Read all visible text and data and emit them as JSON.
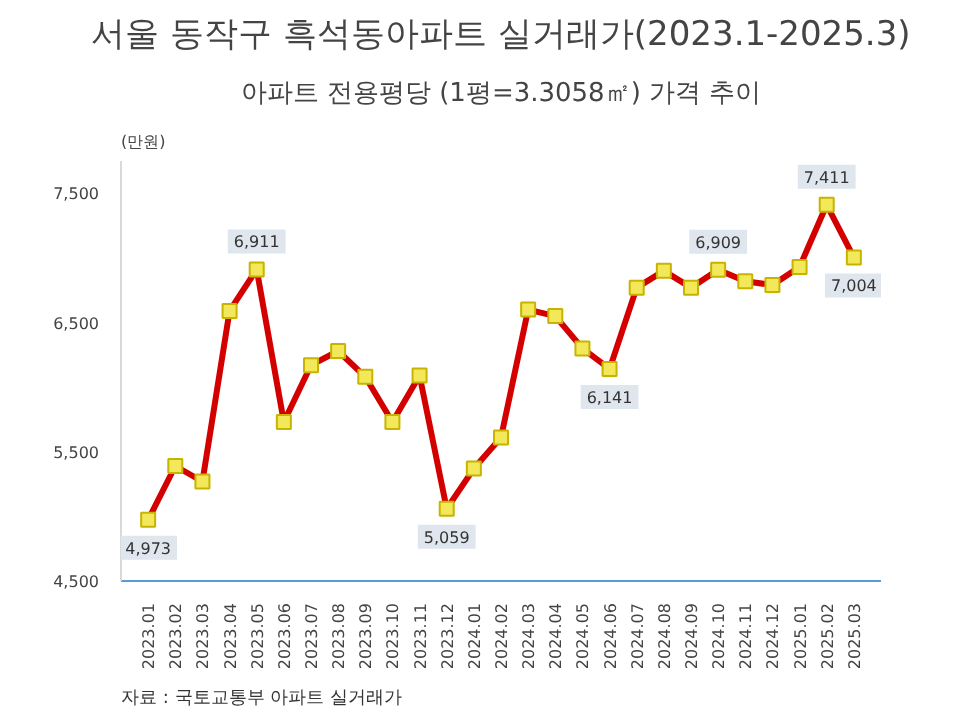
{
  "chart_data": {
    "type": "line",
    "title": "서울 동작구 흑석동아파트 실거래가(2023.1-2025.3)",
    "subtitle": "아파트 전용평당 (1평=3.3058㎡) 가격 추이",
    "ylabel": "(만원)",
    "categories": [
      "2023.01",
      "2023.02",
      "2023.03",
      "2023.04",
      "2023.05",
      "2023.06",
      "2023.07",
      "2023.08",
      "2023.09",
      "2023.10",
      "2023.11",
      "2023.12",
      "2024.01",
      "2024.02",
      "2024.03",
      "2024.04",
      "2024.05",
      "2024.06",
      "2024.07",
      "2024.08",
      "2024.09",
      "2024.10",
      "2024.11",
      "2024.12",
      "2025.01",
      "2025.02",
      "2025.03"
    ],
    "series": [
      {
        "color": "#d40000",
        "values": [
          4973,
          5390,
          5270,
          6590,
          6911,
          5730,
          6170,
          6280,
          6080,
          5730,
          6090,
          5059,
          5370,
          5610,
          6600,
          6550,
          6300,
          6141,
          6770,
          6900,
          6770,
          6909,
          6820,
          6790,
          6930,
          7411,
          7004
        ],
        "value_labels": [
          "4,973",
          null,
          null,
          null,
          "6,911",
          null,
          null,
          null,
          null,
          null,
          null,
          "5,059",
          null,
          null,
          null,
          null,
          null,
          "6,141",
          null,
          null,
          null,
          "6,909",
          null,
          null,
          null,
          "7,411",
          "7,004"
        ]
      }
    ],
    "ylim": [
      4500,
      7750
    ],
    "yticks": [
      {
        "value": 4500,
        "label": "4,500"
      },
      {
        "value": 5500,
        "label": "5,500"
      },
      {
        "value": 6500,
        "label": "6,500"
      },
      {
        "value": 7500,
        "label": "7,500"
      }
    ],
    "marker": "square",
    "grid": false,
    "annotations": [
      "자료 : 국토교통부 아파트 실거래가"
    ]
  }
}
